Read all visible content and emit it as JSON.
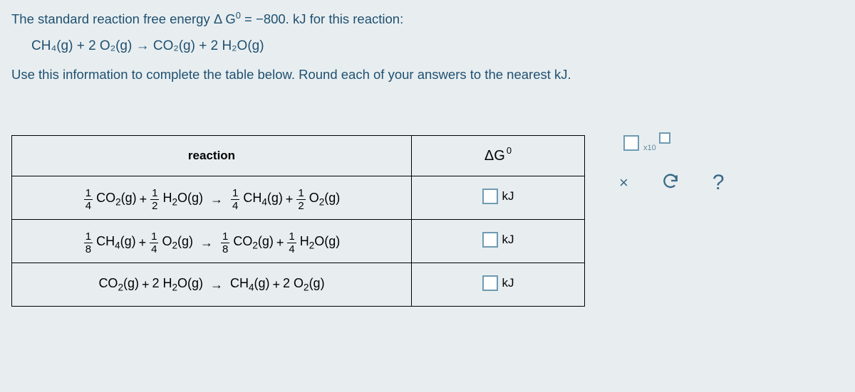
{
  "prompt": {
    "line1_a": "The standard reaction free energy ",
    "line1_b": " for this reaction:",
    "dg_value": "−800. kJ",
    "main_equation": "CH₄(g) + 2 O₂(g) → CO₂(g) + 2 H₂O(g)",
    "line2": "Use this information to complete the table below. Round each of your answers to the nearest kJ."
  },
  "table": {
    "header_reaction": "reaction",
    "header_dg_symbol": "ΔG",
    "header_dg_sup": "0",
    "rows": [
      {
        "lhs": [
          {
            "frac": "1/4",
            "sp": "CO₂(g)"
          },
          {
            "plus": true
          },
          {
            "frac": "1/2",
            "sp": "H₂O(g)"
          }
        ],
        "rhs": [
          {
            "frac": "1/4",
            "sp": "CH₄(g)"
          },
          {
            "plus": true
          },
          {
            "frac": "1/2",
            "sp": "O₂(g)"
          }
        ],
        "unit": "kJ"
      },
      {
        "lhs": [
          {
            "frac": "1/8",
            "sp": "CH₄(g)"
          },
          {
            "plus": true
          },
          {
            "frac": "1/4",
            "sp": "O₂(g)"
          }
        ],
        "rhs": [
          {
            "frac": "1/8",
            "sp": "CO₂(g)"
          },
          {
            "plus": true
          },
          {
            "frac": "1/4",
            "sp": "H₂O(g)"
          }
        ],
        "unit": "kJ"
      },
      {
        "lhs": [
          {
            "sp": "CO₂(g)"
          },
          {
            "plus": true
          },
          {
            "sp": "2 H₂O(g)"
          }
        ],
        "rhs": [
          {
            "sp": "CH₄(g)"
          },
          {
            "plus": true
          },
          {
            "sp": "2 O₂(g)"
          }
        ],
        "unit": "kJ"
      }
    ]
  },
  "keypad": {
    "sci_label": "x10",
    "close": "×",
    "help": "?"
  },
  "colors": {
    "text": "#205070",
    "border": "#6f9ab2",
    "bg": "#e8eef0"
  }
}
